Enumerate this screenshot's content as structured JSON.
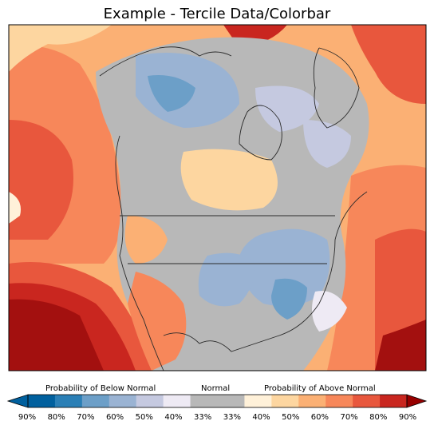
{
  "title": "Example - Tercile Data/Colorbar",
  "colorbar": {
    "below_label": "Probability of Below Normal",
    "normal_label": "Normal",
    "above_label": "Probability of Above Normal",
    "colors": [
      "#00609e",
      "#2a7fb6",
      "#6c9fc8",
      "#9ab3d3",
      "#c5c9e0",
      "#eeeaf4",
      "#b8b8b8",
      "#b8b8b8",
      "#fff1d9",
      "#fdd6a0",
      "#fbb074",
      "#f7875a",
      "#e8573d",
      "#c9261f"
    ],
    "min_extend_color": "#00609e",
    "max_extend_color": "#970000",
    "tick_labels": [
      "90%",
      "80%",
      "70%",
      "60%",
      "50%",
      "40%",
      "33%",
      "33%",
      "40%",
      "50%",
      "60%",
      "70%",
      "80%",
      "90%"
    ]
  }
}
